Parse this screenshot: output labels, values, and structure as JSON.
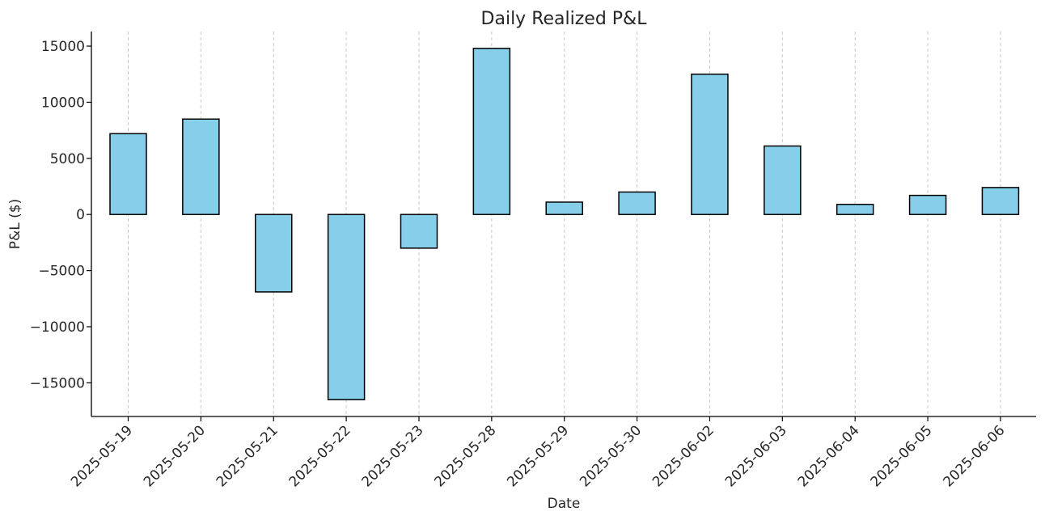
{
  "chart_data": {
    "type": "bar",
    "title": "Daily Realized P&L",
    "xlabel": "Date",
    "ylabel": "P&L ($)",
    "categories": [
      "2025-05-19",
      "2025-05-20",
      "2025-05-21",
      "2025-05-22",
      "2025-05-23",
      "2025-05-28",
      "2025-05-29",
      "2025-05-30",
      "2025-06-02",
      "2025-06-03",
      "2025-06-04",
      "2025-06-05",
      "2025-06-06"
    ],
    "values": [
      7200,
      8500,
      -6900,
      -16500,
      -3000,
      14800,
      1100,
      2000,
      12500,
      6100,
      900,
      1700,
      2400
    ],
    "ylim": [
      -18000,
      16300
    ],
    "yticks": [
      -15000,
      -10000,
      -5000,
      0,
      5000,
      10000,
      15000
    ],
    "ytick_labels": [
      "−15000",
      "−10000",
      "−5000",
      "0",
      "5000",
      "10000",
      "15000"
    ],
    "bar_color": "#87ceeb",
    "edge_color": "#000000",
    "grid": "x, dashed",
    "legend": "none"
  }
}
